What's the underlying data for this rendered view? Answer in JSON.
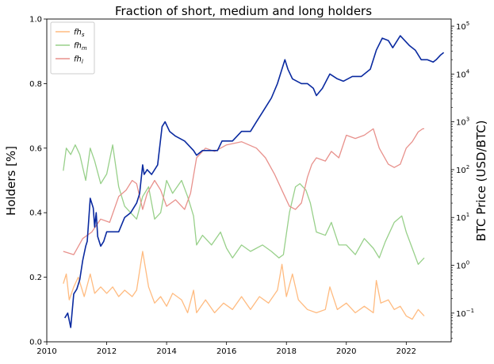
{
  "chart_data": {
    "type": "line",
    "title": "Fraction of short, medium and long holders",
    "xlabel": "",
    "ylabel": "Holders [%]",
    "y2label": "BTC Price (USD/BTC)",
    "xlim": [
      2010.0,
      2023.5
    ],
    "ylim": [
      0.0,
      1.0
    ],
    "y2lim_log10": [
      -1.6,
      5.15
    ],
    "y2scale": "log",
    "legend_position": "top-left",
    "grid": false,
    "x_ticks": [
      {
        "value": 2010,
        "label": "2010"
      },
      {
        "value": 2012,
        "label": "2012"
      },
      {
        "value": 2014,
        "label": "2014"
      },
      {
        "value": 2016,
        "label": "2016"
      },
      {
        "value": 2018,
        "label": "2018"
      },
      {
        "value": 2020,
        "label": "2020"
      },
      {
        "value": 2022,
        "label": "2022"
      }
    ],
    "y_ticks": [
      {
        "value": 0.0,
        "label": "0.0"
      },
      {
        "value": 0.2,
        "label": "0.2"
      },
      {
        "value": 0.4,
        "label": "0.4"
      },
      {
        "value": 0.6,
        "label": "0.6"
      },
      {
        "value": 0.8,
        "label": "0.8"
      },
      {
        "value": 1.0,
        "label": "1.0"
      }
    ],
    "y2_ticks": [
      {
        "value": -1,
        "base": "10",
        "exp": "−1"
      },
      {
        "value": 0,
        "base": "10",
        "exp": "0"
      },
      {
        "value": 1,
        "base": "10",
        "exp": "1"
      },
      {
        "value": 2,
        "base": "10",
        "exp": "2"
      },
      {
        "value": 3,
        "base": "10",
        "exp": "3"
      },
      {
        "value": 4,
        "base": "10",
        "exp": "4"
      },
      {
        "value": 5,
        "base": "10",
        "exp": "5"
      }
    ],
    "series": [
      {
        "name": "fh_s",
        "label_main": "fh",
        "label_sub": "s",
        "color": "#ffbb80",
        "axis": "left",
        "x": [
          2010.55,
          2010.65,
          2010.75,
          2010.9,
          2011.05,
          2011.25,
          2011.45,
          2011.6,
          2011.8,
          2012.0,
          2012.2,
          2012.4,
          2012.6,
          2012.85,
          2013.0,
          2013.2,
          2013.4,
          2013.6,
          2013.8,
          2014.0,
          2014.2,
          2014.5,
          2014.7,
          2014.9,
          2015.0,
          2015.3,
          2015.6,
          2015.9,
          2016.2,
          2016.5,
          2016.8,
          2017.1,
          2017.4,
          2017.7,
          2017.85,
          2018.0,
          2018.2,
          2018.4,
          2018.7,
          2019.0,
          2019.3,
          2019.45,
          2019.7,
          2020.0,
          2020.3,
          2020.6,
          2020.9,
          2021.0,
          2021.15,
          2021.4,
          2021.6,
          2021.8,
          2022.0,
          2022.2,
          2022.4,
          2022.6
        ],
        "y": [
          0.18,
          0.21,
          0.13,
          0.17,
          0.2,
          0.14,
          0.21,
          0.15,
          0.17,
          0.15,
          0.17,
          0.14,
          0.16,
          0.14,
          0.16,
          0.28,
          0.17,
          0.12,
          0.14,
          0.11,
          0.15,
          0.13,
          0.09,
          0.16,
          0.09,
          0.13,
          0.09,
          0.12,
          0.1,
          0.14,
          0.1,
          0.14,
          0.12,
          0.16,
          0.24,
          0.14,
          0.21,
          0.13,
          0.1,
          0.09,
          0.1,
          0.17,
          0.1,
          0.12,
          0.09,
          0.11,
          0.09,
          0.19,
          0.12,
          0.13,
          0.1,
          0.11,
          0.08,
          0.07,
          0.1,
          0.08
        ]
      },
      {
        "name": "fh_m",
        "label_main": "fh",
        "label_sub": "m",
        "color": "#98d08a",
        "axis": "left",
        "x": [
          2010.55,
          2010.65,
          2010.8,
          2010.95,
          2011.1,
          2011.3,
          2011.45,
          2011.6,
          2011.8,
          2012.0,
          2012.2,
          2012.4,
          2012.6,
          2012.8,
          2013.0,
          2013.2,
          2013.4,
          2013.6,
          2013.8,
          2014.0,
          2014.2,
          2014.5,
          2014.7,
          2014.9,
          2015.0,
          2015.2,
          2015.5,
          2015.8,
          2016.0,
          2016.2,
          2016.5,
          2016.8,
          2017.2,
          2017.5,
          2017.75,
          2017.9,
          2018.1,
          2018.3,
          2018.45,
          2018.65,
          2018.8,
          2019.0,
          2019.3,
          2019.5,
          2019.75,
          2020.0,
          2020.3,
          2020.6,
          2020.9,
          2021.1,
          2021.3,
          2021.6,
          2021.85,
          2022.0,
          2022.2,
          2022.4,
          2022.6
        ],
        "y": [
          0.53,
          0.6,
          0.58,
          0.61,
          0.58,
          0.5,
          0.6,
          0.56,
          0.49,
          0.52,
          0.61,
          0.48,
          0.42,
          0.4,
          0.38,
          0.45,
          0.48,
          0.38,
          0.4,
          0.5,
          0.46,
          0.5,
          0.45,
          0.39,
          0.3,
          0.33,
          0.3,
          0.34,
          0.29,
          0.26,
          0.3,
          0.28,
          0.3,
          0.28,
          0.26,
          0.27,
          0.4,
          0.48,
          0.49,
          0.47,
          0.43,
          0.34,
          0.33,
          0.37,
          0.3,
          0.3,
          0.27,
          0.32,
          0.29,
          0.26,
          0.31,
          0.37,
          0.39,
          0.34,
          0.29,
          0.24,
          0.26
        ]
      },
      {
        "name": "fh_l",
        "label_main": "fh",
        "label_sub": "l",
        "color": "#e8918c",
        "axis": "left",
        "x": [
          2010.55,
          2010.9,
          2011.2,
          2011.5,
          2011.8,
          2012.1,
          2012.4,
          2012.65,
          2012.85,
          2013.0,
          2013.2,
          2013.35,
          2013.6,
          2013.8,
          2014.0,
          2014.3,
          2014.6,
          2014.8,
          2015.0,
          2015.3,
          2015.6,
          2016.0,
          2016.5,
          2017.0,
          2017.3,
          2017.6,
          2017.9,
          2018.1,
          2018.3,
          2018.5,
          2018.7,
          2018.85,
          2019.0,
          2019.3,
          2019.5,
          2019.75,
          2020.0,
          2020.3,
          2020.6,
          2020.9,
          2021.1,
          2021.4,
          2021.6,
          2021.8,
          2022.0,
          2022.2,
          2022.4,
          2022.55,
          2022.6
        ],
        "y": [
          0.28,
          0.27,
          0.32,
          0.34,
          0.38,
          0.37,
          0.45,
          0.47,
          0.5,
          0.49,
          0.41,
          0.46,
          0.5,
          0.47,
          0.42,
          0.44,
          0.41,
          0.46,
          0.57,
          0.6,
          0.59,
          0.61,
          0.62,
          0.6,
          0.57,
          0.52,
          0.46,
          0.42,
          0.41,
          0.43,
          0.51,
          0.55,
          0.57,
          0.56,
          0.59,
          0.57,
          0.64,
          0.63,
          0.64,
          0.66,
          0.6,
          0.55,
          0.54,
          0.55,
          0.6,
          0.62,
          0.65,
          0.66,
          0.66
        ]
      },
      {
        "name": "BTC price",
        "color": "#0a2aa0",
        "axis": "right",
        "x": [
          2010.6,
          2010.7,
          2010.8,
          2010.9,
          2011.0,
          2011.1,
          2011.2,
          2011.3,
          2011.35,
          2011.45,
          2011.55,
          2011.6,
          2011.65,
          2011.7,
          2011.8,
          2011.9,
          2012.0,
          2012.2,
          2012.4,
          2012.6,
          2012.8,
          2013.0,
          2013.1,
          2013.2,
          2013.25,
          2013.35,
          2013.5,
          2013.7,
          2013.85,
          2013.95,
          2014.1,
          2014.3,
          2014.6,
          2014.9,
          2015.0,
          2015.2,
          2015.5,
          2015.7,
          2015.85,
          2016.0,
          2016.2,
          2016.5,
          2016.8,
          2017.0,
          2017.2,
          2017.5,
          2017.7,
          2017.95,
          2018.05,
          2018.2,
          2018.5,
          2018.7,
          2018.9,
          2019.0,
          2019.2,
          2019.45,
          2019.7,
          2019.9,
          2020.2,
          2020.5,
          2020.8,
          2021.0,
          2021.2,
          2021.4,
          2021.55,
          2021.8,
          2021.95,
          2022.1,
          2022.3,
          2022.5,
          2022.7,
          2022.9,
          2023.0,
          2023.15,
          2023.25
        ],
        "y_log10": [
          -1.1,
          -1.0,
          -1.3,
          -0.6,
          -0.5,
          -0.3,
          0.1,
          0.4,
          0.5,
          1.4,
          1.2,
          0.8,
          1.1,
          0.6,
          0.4,
          0.5,
          0.7,
          0.7,
          0.7,
          1.0,
          1.1,
          1.3,
          1.5,
          2.1,
          1.9,
          2.0,
          1.9,
          2.1,
          2.9,
          3.0,
          2.8,
          2.7,
          2.6,
          2.4,
          2.3,
          2.4,
          2.4,
          2.4,
          2.6,
          2.6,
          2.6,
          2.8,
          2.8,
          3.0,
          3.2,
          3.5,
          3.8,
          4.3,
          4.1,
          3.9,
          3.8,
          3.8,
          3.7,
          3.55,
          3.7,
          4.0,
          3.9,
          3.85,
          3.95,
          3.95,
          4.1,
          4.5,
          4.75,
          4.7,
          4.55,
          4.8,
          4.7,
          4.6,
          4.5,
          4.3,
          4.3,
          4.25,
          4.3,
          4.4,
          4.45
        ]
      }
    ]
  }
}
